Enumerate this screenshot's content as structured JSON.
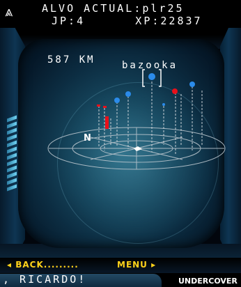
{
  "hud": {
    "menu_icon": "chevrons-up-icon",
    "target_line": "ALVO ACTUAL:plr25",
    "stats_line": "JP:4      XP:22837",
    "distance": "587 KM",
    "selected_target": "bazooka",
    "compass_north": "N"
  },
  "radar": {
    "markers": [
      {
        "color": "red",
        "shape": "tick"
      },
      {
        "color": "red",
        "shape": "tick"
      },
      {
        "color": "red",
        "shape": "bar"
      },
      {
        "color": "blue",
        "shape": "ball"
      },
      {
        "color": "blue",
        "shape": "ball"
      },
      {
        "color": "blue",
        "shape": "ball-selected"
      },
      {
        "color": "blue",
        "shape": "dot"
      },
      {
        "color": "red",
        "shape": "ball"
      },
      {
        "color": "blue",
        "shape": "ball"
      }
    ]
  },
  "softkeys": {
    "left_arrow": "◂",
    "left_label": "BACK.........",
    "right_label": "MENU",
    "right_arrow": "▸"
  },
  "ticker": {
    "text": ", RICARDO!",
    "brand": "UNDERCOVER"
  },
  "colors": {
    "softkey": "#ffd21a",
    "marker_red": "#e8101a",
    "marker_blue": "#2b8bea",
    "grid": "#b8c4cc"
  }
}
